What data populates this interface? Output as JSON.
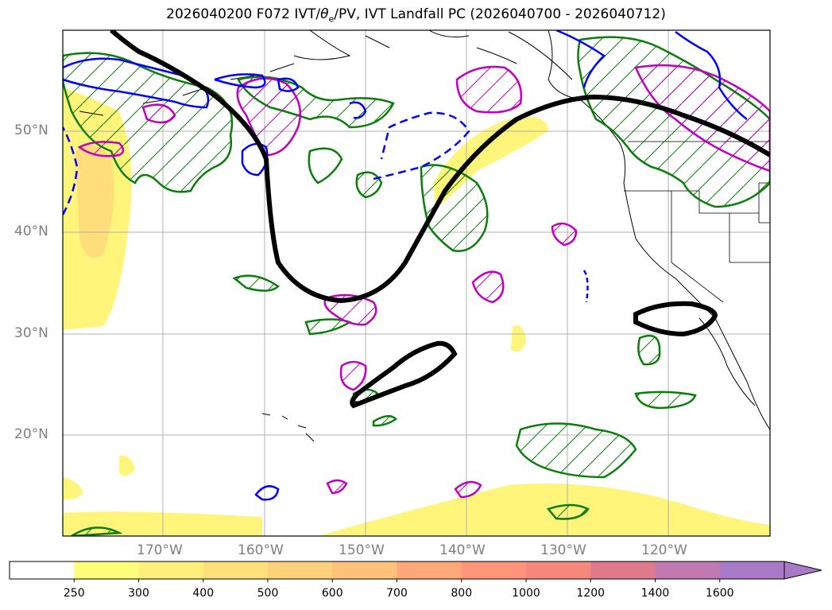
{
  "title": {
    "prefix": "2026040200 F072 IVT/",
    "theta": "θ",
    "theta_sub": "e",
    "suffix": "/PV, IVT Landfall PC (2026040700 - 2026040712)"
  },
  "map": {
    "projection": "lat-lon",
    "lat_range": [
      10,
      60
    ],
    "lon_range": [
      -180,
      -110
    ],
    "lat_labels": [
      "50°N",
      "40°N",
      "30°N",
      "20°N"
    ],
    "lon_labels": [
      "170°W",
      "160°W",
      "150°W",
      "140°W",
      "130°W",
      "120°W"
    ],
    "layers": [
      {
        "name": "IVT shading",
        "color": "#fef57a"
      },
      {
        "name": "IVT landfall principal component",
        "color": "#000000"
      },
      {
        "name": "theta-e contours",
        "color": "#0a7d0a"
      },
      {
        "name": "PV contours (positive)",
        "color": "#c000c0"
      },
      {
        "name": "PV contours (negative)",
        "color": "#0000ff"
      }
    ]
  },
  "colorbar": {
    "labels": [
      "250",
      "300",
      "400",
      "500",
      "600",
      "700",
      "800",
      "1000",
      "1200",
      "1400",
      "1600"
    ],
    "colors": [
      "#ffffff",
      "#fefe7a",
      "#fef07a",
      "#fee07a",
      "#fed27a",
      "#fec27a",
      "#fea87a",
      "#fe947a",
      "#f4887a",
      "#de7a8c",
      "#c07ab0",
      "#a87ac8"
    ],
    "extend": "max"
  }
}
